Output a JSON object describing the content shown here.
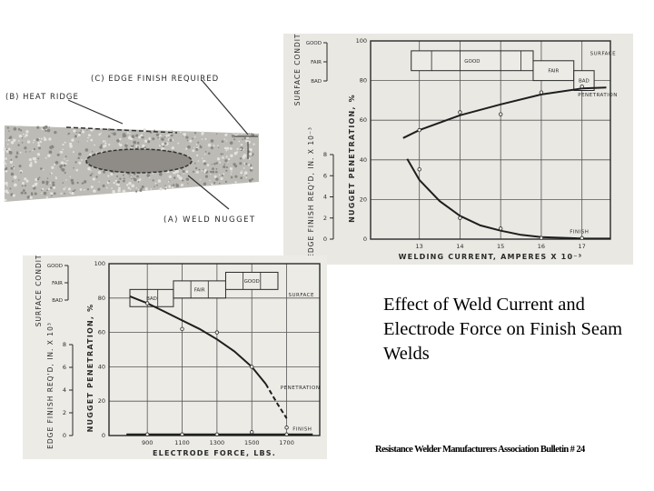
{
  "slide": {
    "title": "Effect of Weld Current and Electrode Force on Finish Seam Welds",
    "footer": "Resistance Welder Manufacturers Association Bulletin # 24"
  },
  "diagram": {
    "label_a": "(A) WELD NUGGET",
    "label_b": "(B) HEAT RIDGE",
    "label_c": "(C) EDGE FINISH REQUIRED"
  },
  "chart_data": [
    {
      "type": "line",
      "title": "",
      "xlabel": "WELDING CURRENT,  AMPERES  X 10⁻³",
      "ylabel": "NUGGET PENETRATION, %",
      "y2label": "EDGE FINISH REQ'D, IN. X 10⁻³",
      "y3label": "SURFACE CONDITION",
      "xlim": [
        11.8,
        17.7
      ],
      "ylim": [
        0,
        100
      ],
      "y2lim": [
        0,
        8
      ],
      "xticks": [
        13,
        14,
        15,
        16,
        17
      ],
      "yticks": [
        0,
        20,
        40,
        60,
        80,
        100
      ],
      "y2ticks": [
        0,
        2,
        4,
        6,
        8
      ],
      "surface_levels": [
        "GOOD",
        "FAIR",
        "BAD"
      ],
      "grid": true,
      "surface_bands": [
        {
          "label": "GOOD",
          "x": [
            12.8,
            15.8
          ],
          "y": [
            85,
            95
          ],
          "dividers": [
            13.3,
            14.0,
            15.0,
            15.5
          ]
        },
        {
          "label": "FAIR",
          "x": [
            15.8,
            16.8
          ],
          "y": [
            80,
            90
          ],
          "dividers": []
        },
        {
          "label": "BAD",
          "x": [
            16.8,
            17.3
          ],
          "y": [
            75,
            85
          ],
          "dividers": []
        }
      ],
      "series": [
        {
          "name": "PENETRATION",
          "axis": "y",
          "points": [
            [
              13,
              55
            ],
            [
              14,
              64
            ],
            [
              15,
              63
            ],
            [
              16,
              74
            ],
            [
              17,
              77
            ]
          ],
          "curve": [
            [
              12.6,
              51
            ],
            [
              13,
              55
            ],
            [
              14,
              62.5
            ],
            [
              15,
              68
            ],
            [
              16,
              73
            ],
            [
              17,
              76
            ],
            [
              17.6,
              76.5
            ]
          ]
        },
        {
          "name": "FINISH",
          "axis": "y2",
          "points": [
            [
              13,
              6.6
            ],
            [
              14,
              2.0
            ],
            [
              15,
              1.0
            ],
            [
              16,
              0.1
            ],
            [
              17,
              0.1
            ]
          ],
          "curve": [
            [
              12.7,
              7.6
            ],
            [
              13,
              5.6
            ],
            [
              13.5,
              3.6
            ],
            [
              14,
              2.2
            ],
            [
              14.5,
              1.3
            ],
            [
              15,
              0.8
            ],
            [
              15.5,
              0.4
            ],
            [
              16,
              0.2
            ],
            [
              17,
              0.06
            ],
            [
              17.7,
              0.05
            ]
          ]
        }
      ],
      "annotations": [
        "SURFACE",
        "PENETRATION",
        "FINISH"
      ]
    },
    {
      "type": "line",
      "title": "",
      "xlabel": "ELECTRODE FORCE,  LBS.",
      "ylabel": "NUGGET PENETRATION, %",
      "y2label": "EDGE FINISH REQ'D, IN. X 10³",
      "y3label": "SURFACE CONDITION",
      "xlim": [
        680,
        1890
      ],
      "ylim": [
        0,
        100
      ],
      "y2lim": [
        0,
        8
      ],
      "xticks": [
        900,
        1100,
        1300,
        1500,
        1700
      ],
      "yticks": [
        0,
        20,
        40,
        60,
        80,
        100
      ],
      "y2ticks": [
        0,
        2,
        4,
        6,
        8
      ],
      "surface_levels": [
        "GOOD",
        "FAIR",
        "BAD"
      ],
      "grid": true,
      "surface_bands": [
        {
          "label": "BAD",
          "x": [
            800,
            1050
          ],
          "y": [
            75,
            85
          ],
          "dividers": [
            900,
            960
          ]
        },
        {
          "label": "FAIR",
          "x": [
            1050,
            1350
          ],
          "y": [
            80,
            90
          ],
          "dividers": [
            1150,
            1250
          ]
        },
        {
          "label": "GOOD",
          "x": [
            1350,
            1650
          ],
          "y": [
            85,
            95
          ],
          "dividers": [
            1450,
            1550
          ]
        }
      ],
      "series": [
        {
          "name": "PENETRATION",
          "axis": "y",
          "points": [
            [
              900,
              77
            ],
            [
              1100,
              62
            ],
            [
              1300,
              60
            ],
            [
              1500,
              40
            ]
          ],
          "curve": [
            [
              800,
              81
            ],
            [
              900,
              77
            ],
            [
              1000,
              72
            ],
            [
              1100,
              67
            ],
            [
              1200,
              62
            ],
            [
              1300,
              56
            ],
            [
              1400,
              49
            ],
            [
              1500,
              40
            ],
            [
              1580,
              30
            ]
          ],
          "dashed_curve": [
            [
              1580,
              30
            ],
            [
              1650,
              18
            ],
            [
              1700,
              10
            ]
          ]
        },
        {
          "name": "FINISH",
          "axis": "y2",
          "points": [
            [
              900,
              0.1
            ],
            [
              1100,
              0.1
            ],
            [
              1300,
              0.1
            ],
            [
              1500,
              0.3
            ],
            [
              1700,
              0.1
            ],
            [
              1700,
              0.7
            ]
          ],
          "curve": [
            [
              780,
              0.1
            ],
            [
              1850,
              0.1
            ]
          ]
        }
      ],
      "annotations": [
        "SURFACE",
        "PENETRATION",
        "FINISH"
      ]
    }
  ]
}
